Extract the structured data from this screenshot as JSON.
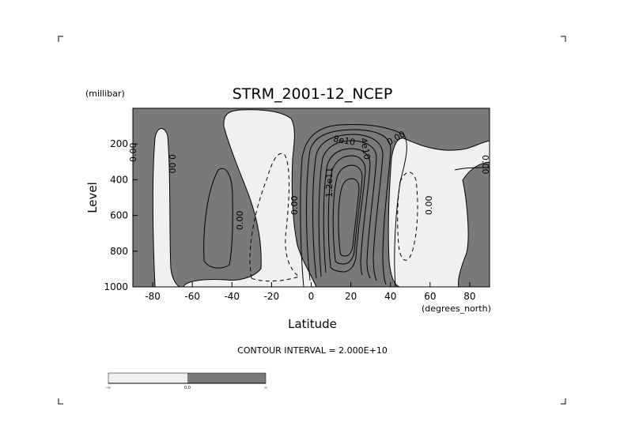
{
  "figure": {
    "units_label": "(millibar)",
    "contour_interval_text": "CONTOUR INTERVAL = 2.000E+10",
    "colorbar": {
      "colors": [
        "#f0f0f0",
        "#7a7a7a"
      ],
      "labels": [
        "-∞",
        "0.0",
        "∞"
      ]
    }
  },
  "chart_data": {
    "type": "heatmap",
    "title": "STRM_2001-12_NCEP",
    "xlabel": "Latitude",
    "xunit": "(degrees_north)",
    "ylabel": "Level",
    "xlim": [
      -90,
      90
    ],
    "ylim": [
      1000,
      0
    ],
    "xticks": [
      -80,
      -60,
      -40,
      -20,
      0,
      20,
      40,
      60,
      80
    ],
    "yticks": [
      200,
      400,
      600,
      800,
      1000
    ],
    "contour_interval": 20000000000.0,
    "fill_colors": {
      "negative": "#f0f0f0",
      "positive": "#7a7a7a"
    },
    "contour_labels": [
      "0.00",
      "0.00",
      "0.00",
      "0.00",
      "0.00",
      "0.00",
      "0.00",
      "8e10",
      "4e10",
      "1.2e11",
      "0.00"
    ],
    "features": [
      {
        "kind": "positive-cell",
        "center_lat": 14,
        "center_level": 520,
        "max_label": "1.2e11"
      },
      {
        "kind": "negative-cell",
        "center_lat": -20,
        "center_level": 600
      },
      {
        "kind": "negative-cell",
        "center_lat": 50,
        "center_level": 550
      },
      {
        "kind": "positive-cell",
        "center_lat": -52,
        "center_level": 620
      },
      {
        "kind": "negative-cell",
        "center_lat": -78,
        "center_level": 560
      }
    ]
  }
}
